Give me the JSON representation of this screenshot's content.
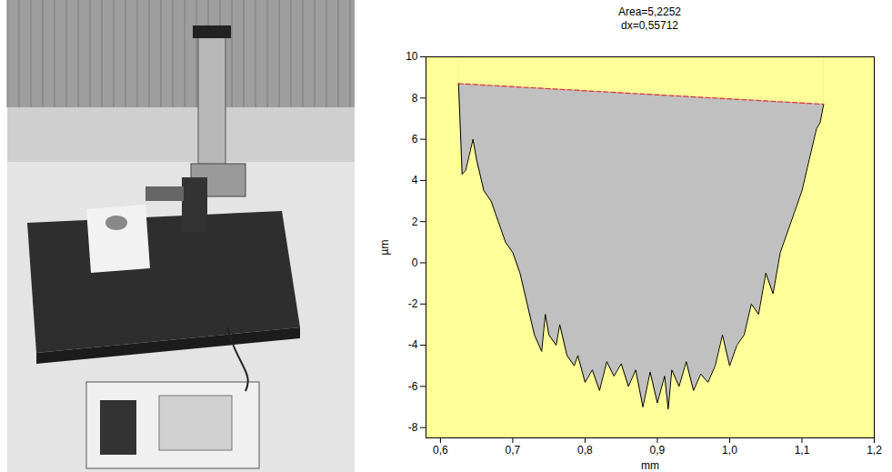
{
  "chart_data": {
    "type": "area",
    "title": "Area=5,2252",
    "subtitle": "dx=0,55712",
    "x_label": "mm",
    "y_label": "µm",
    "xlim": [
      0.58,
      1.2
    ],
    "ylim": [
      -8.5,
      10
    ],
    "xticks": [
      {
        "value": 0.6,
        "label": "0,6"
      },
      {
        "value": 0.7,
        "label": "0,7"
      },
      {
        "value": 0.8,
        "label": "0,8"
      },
      {
        "value": 0.9,
        "label": "0,9"
      },
      {
        "value": 1.0,
        "label": "1,0"
      },
      {
        "value": 1.1,
        "label": "1,1"
      },
      {
        "value": 1.2,
        "label": "1,2"
      }
    ],
    "yticks": [
      -8,
      -6,
      -4,
      -2,
      0,
      2,
      4,
      6,
      8,
      10
    ],
    "grid": false,
    "profile": {
      "color": "#000000",
      "fill": "#c0c0c0",
      "x": [
        0.625,
        0.63,
        0.635,
        0.645,
        0.65,
        0.66,
        0.67,
        0.68,
        0.69,
        0.7,
        0.71,
        0.72,
        0.73,
        0.74,
        0.745,
        0.75,
        0.76,
        0.765,
        0.775,
        0.785,
        0.79,
        0.8,
        0.81,
        0.82,
        0.83,
        0.84,
        0.85,
        0.86,
        0.87,
        0.88,
        0.89,
        0.9,
        0.91,
        0.915,
        0.92,
        0.93,
        0.94,
        0.95,
        0.96,
        0.97,
        0.98,
        0.99,
        1.0,
        1.01,
        1.02,
        1.03,
        1.04,
        1.05,
        1.06,
        1.07,
        1.08,
        1.09,
        1.1,
        1.11,
        1.12,
        1.125,
        1.13
      ],
      "values": [
        8.7,
        4.3,
        4.5,
        6,
        5,
        3.5,
        3,
        2,
        1,
        0.5,
        -0.5,
        -2,
        -3.5,
        -4.3,
        -2.5,
        -3.5,
        -4,
        -3,
        -4.5,
        -5,
        -4.5,
        -5.8,
        -5.2,
        -6.2,
        -4.8,
        -5.5,
        -4.9,
        -6,
        -5.2,
        -7,
        -5.3,
        -6.8,
        -5.5,
        -7.1,
        -5.2,
        -6,
        -4.8,
        -6.2,
        -5.4,
        -5.8,
        -5,
        -3.5,
        -5,
        -4,
        -3.5,
        -2,
        -2.5,
        -0.5,
        -1.5,
        0.5,
        1.5,
        2.5,
        3.5,
        5,
        6.5,
        6.8,
        7.7
      ]
    },
    "baseline": {
      "color": "#e03030",
      "line_style": "dashed",
      "x": [
        0.625,
        1.13
      ],
      "values": [
        8.7,
        7.7
      ]
    }
  }
}
